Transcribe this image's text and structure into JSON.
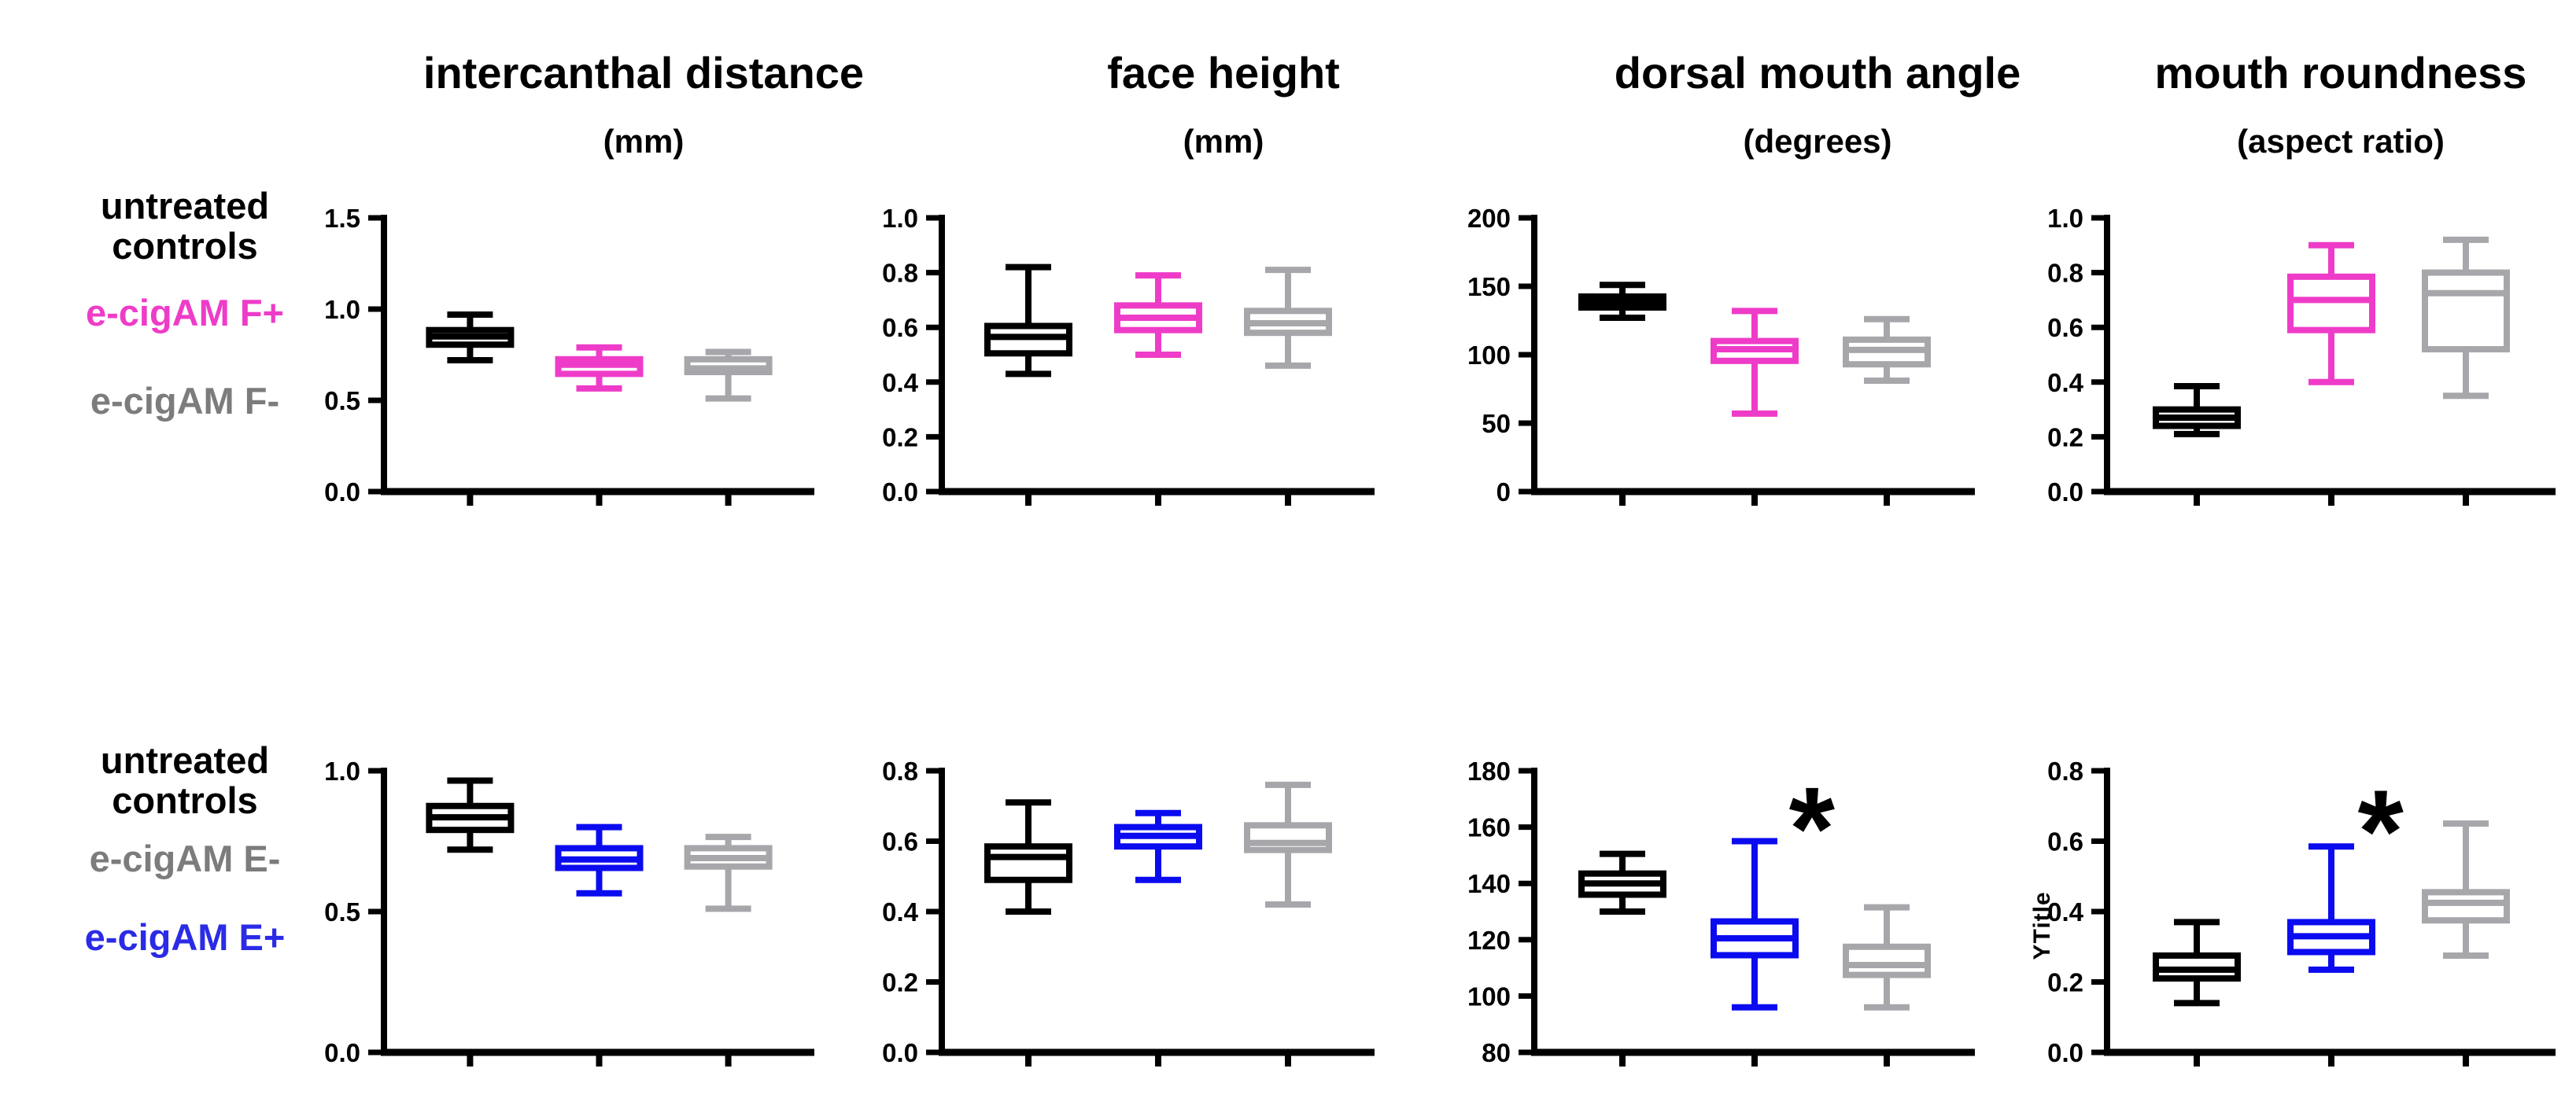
{
  "figure": {
    "background": "#ffffff",
    "accent_colors": {
      "black": "#000000",
      "magenta": "#EE3CC8",
      "blue": "#0B0BEF",
      "gray_box": "#A7A7AB",
      "gray_label": "#7C7C7C",
      "blue_label": "#2B2BE6"
    },
    "columns": [
      {
        "title": "intercanthal distance",
        "subtitle": "(mm)"
      },
      {
        "title": "face height",
        "subtitle": "(mm)"
      },
      {
        "title": "dorsal mouth angle",
        "subtitle": "(degrees)"
      },
      {
        "title": "mouth roundness",
        "subtitle": "(aspect ratio)"
      }
    ],
    "rows": [
      {
        "labels": [
          {
            "text": "untreated\ncontrols",
            "color": "#000000"
          },
          {
            "text": "e-cigAM F+",
            "color": "#EE3CC8"
          },
          {
            "text": "e-cigAM F-",
            "color": "#7C7C7C"
          }
        ]
      },
      {
        "labels": [
          {
            "text": "untreated\ncontrols",
            "color": "#000000"
          },
          {
            "text": "e-cigAM E-",
            "color": "#7C7C7C"
          },
          {
            "text": "e-cigAM E+",
            "color": "#2B2BE6"
          }
        ]
      }
    ]
  },
  "chart_data": [
    {
      "type": "box",
      "row": 0,
      "col": 0,
      "title": "intercanthal distance",
      "unit": "(mm)",
      "ylim": [
        0,
        1.5
      ],
      "yticks": [
        "0.0",
        "0.5",
        "1.0",
        "1.5"
      ],
      "ylabel": null,
      "groups": [
        {
          "name": "untreated controls",
          "color": "#000000",
          "min": 0.72,
          "q1": 0.805,
          "median": 0.85,
          "q3": 0.885,
          "max": 0.97
        },
        {
          "name": "e-cigAM F+",
          "color": "#EE3CC8",
          "min": 0.565,
          "q1": 0.645,
          "median": 0.695,
          "q3": 0.725,
          "max": 0.79
        },
        {
          "name": "e-cigAM F-",
          "color": "#A7A7AB",
          "min": 0.51,
          "q1": 0.655,
          "median": 0.675,
          "q3": 0.725,
          "max": 0.765
        }
      ],
      "annotation": null
    },
    {
      "type": "box",
      "row": 0,
      "col": 1,
      "title": "face height",
      "unit": "(mm)",
      "ylim": [
        0,
        1.0
      ],
      "yticks": [
        "0.0",
        "0.2",
        "0.4",
        "0.6",
        "0.8",
        "1.0"
      ],
      "ylabel": null,
      "groups": [
        {
          "name": "untreated controls",
          "color": "#000000",
          "min": 0.43,
          "q1": 0.505,
          "median": 0.565,
          "q3": 0.605,
          "max": 0.82
        },
        {
          "name": "e-cigAM F+",
          "color": "#EE3CC8",
          "min": 0.5,
          "q1": 0.59,
          "median": 0.635,
          "q3": 0.68,
          "max": 0.79
        },
        {
          "name": "e-cigAM F-",
          "color": "#A7A7AB",
          "min": 0.46,
          "q1": 0.58,
          "median": 0.615,
          "q3": 0.66,
          "max": 0.81
        }
      ],
      "annotation": null
    },
    {
      "type": "box",
      "row": 0,
      "col": 2,
      "title": "dorsal mouth angle",
      "unit": "(degrees)",
      "ylim": [
        0,
        200
      ],
      "yticks": [
        "0",
        "50",
        "100",
        "150",
        "200"
      ],
      "ylabel": null,
      "groups": [
        {
          "name": "untreated controls",
          "color": "#000000",
          "min": 127,
          "q1": 134.5,
          "median": 138.5,
          "q3": 142.5,
          "max": 151
        },
        {
          "name": "e-cigAM F+",
          "color": "#EE3CC8",
          "min": 57,
          "q1": 95.5,
          "median": 104,
          "q3": 110,
          "max": 132
        },
        {
          "name": "e-cigAM F-",
          "color": "#A7A7AB",
          "min": 81,
          "q1": 93,
          "median": 103.5,
          "q3": 111,
          "max": 126
        }
      ],
      "annotation": null
    },
    {
      "type": "box",
      "row": 0,
      "col": 3,
      "title": "mouth roundness",
      "unit": "(aspect ratio)",
      "ylim": [
        0,
        1.0
      ],
      "yticks": [
        "0.0",
        "0.2",
        "0.4",
        "0.6",
        "0.8",
        "1.0"
      ],
      "ylabel": null,
      "groups": [
        {
          "name": "untreated controls",
          "color": "#000000",
          "min": 0.21,
          "q1": 0.24,
          "median": 0.27,
          "q3": 0.3,
          "max": 0.385
        },
        {
          "name": "e-cigAM F+",
          "color": "#EE3CC8",
          "min": 0.4,
          "q1": 0.59,
          "median": 0.7,
          "q3": 0.785,
          "max": 0.9
        },
        {
          "name": "e-cigAM F-",
          "color": "#A7A7AB",
          "min": 0.35,
          "q1": 0.52,
          "median": 0.725,
          "q3": 0.8,
          "max": 0.92
        }
      ],
      "annotation": null
    },
    {
      "type": "box",
      "row": 1,
      "col": 0,
      "title": "intercanthal distance",
      "unit": "(mm)",
      "ylim": [
        0,
        1.0
      ],
      "yticks": [
        "0.0",
        "0.5",
        "1.0"
      ],
      "ylabel": null,
      "groups": [
        {
          "name": "untreated controls",
          "color": "#000000",
          "min": 0.72,
          "q1": 0.79,
          "median": 0.835,
          "q3": 0.875,
          "max": 0.965
        },
        {
          "name": "e-cigAM E+",
          "color": "#0B0BEF",
          "min": 0.565,
          "q1": 0.655,
          "median": 0.685,
          "q3": 0.725,
          "max": 0.8
        },
        {
          "name": "e-cigAM E-",
          "color": "#A7A7AB",
          "min": 0.51,
          "q1": 0.66,
          "median": 0.69,
          "q3": 0.725,
          "max": 0.765
        }
      ],
      "annotation": null
    },
    {
      "type": "box",
      "row": 1,
      "col": 1,
      "title": "face height",
      "unit": "(mm)",
      "ylim": [
        0,
        0.8
      ],
      "yticks": [
        "0.0",
        "0.2",
        "0.4",
        "0.6",
        "0.8"
      ],
      "ylabel": null,
      "groups": [
        {
          "name": "untreated controls",
          "color": "#000000",
          "min": 0.4,
          "q1": 0.49,
          "median": 0.555,
          "q3": 0.585,
          "max": 0.71
        },
        {
          "name": "e-cigAM E+",
          "color": "#0B0BEF",
          "min": 0.49,
          "q1": 0.585,
          "median": 0.615,
          "q3": 0.64,
          "max": 0.68
        },
        {
          "name": "e-cigAM E-",
          "color": "#A7A7AB",
          "min": 0.42,
          "q1": 0.575,
          "median": 0.595,
          "q3": 0.645,
          "max": 0.76
        }
      ],
      "annotation": null
    },
    {
      "type": "box",
      "row": 1,
      "col": 2,
      "title": "dorsal mouth angle",
      "unit": "(degrees)",
      "ylim": [
        80,
        180
      ],
      "yticks": [
        "80",
        "100",
        "120",
        "140",
        "160",
        "180"
      ],
      "ylabel": null,
      "groups": [
        {
          "name": "untreated controls",
          "color": "#000000",
          "min": 130,
          "q1": 136,
          "median": 140,
          "q3": 143.5,
          "max": 150.5
        },
        {
          "name": "e-cigAM E+",
          "color": "#0B0BEF",
          "min": 96,
          "q1": 114.5,
          "median": 120.5,
          "q3": 126.5,
          "max": 155
        },
        {
          "name": "e-cigAM E-",
          "color": "#A7A7AB",
          "min": 96,
          "q1": 107.5,
          "median": 111,
          "q3": 117.5,
          "max": 131.5
        }
      ],
      "annotation": {
        "symbol": "*",
        "x_frac": 0.63,
        "y_value": 166
      }
    },
    {
      "type": "box",
      "row": 1,
      "col": 3,
      "title": "mouth roundness",
      "unit": "(aspect ratio)",
      "ylim": [
        0,
        0.8
      ],
      "yticks": [
        "0.0",
        "0.2",
        "0.4",
        "0.6",
        "0.8"
      ],
      "ylabel": "YTitle",
      "groups": [
        {
          "name": "untreated controls",
          "color": "#000000",
          "min": 0.14,
          "q1": 0.21,
          "median": 0.235,
          "q3": 0.275,
          "max": 0.37
        },
        {
          "name": "e-cigAM E+",
          "color": "#0B0BEF",
          "min": 0.235,
          "q1": 0.285,
          "median": 0.33,
          "q3": 0.37,
          "max": 0.585
        },
        {
          "name": "e-cigAM E-",
          "color": "#A7A7AB",
          "min": 0.275,
          "q1": 0.375,
          "median": 0.425,
          "q3": 0.455,
          "max": 0.65
        }
      ],
      "annotation": {
        "symbol": "*",
        "x_frac": 0.61,
        "y_value": 0.68
      }
    }
  ]
}
